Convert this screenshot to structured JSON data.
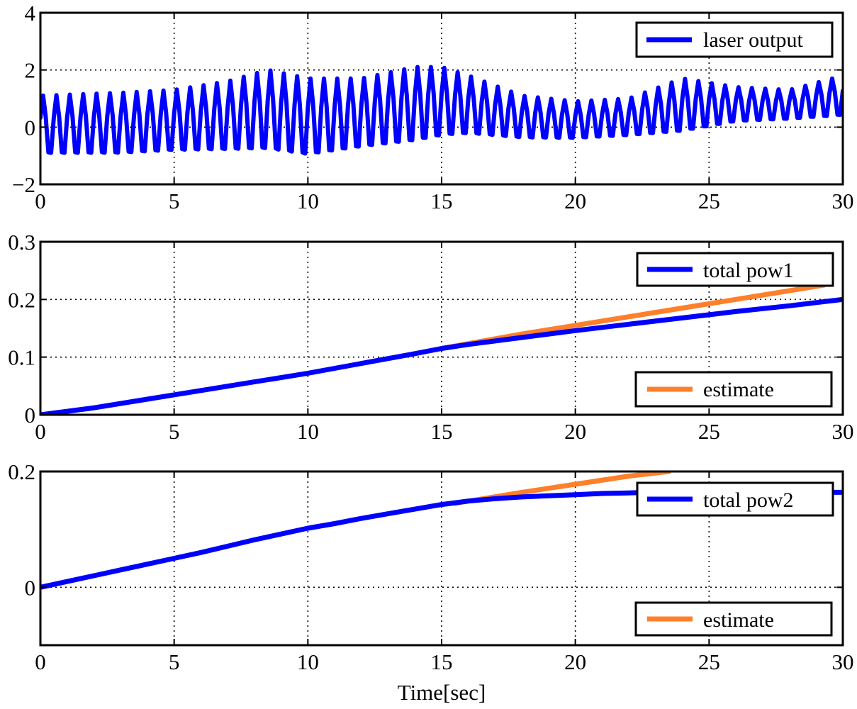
{
  "chart_data": [
    {
      "type": "line",
      "xlim": [
        0,
        30
      ],
      "ylim": [
        -2,
        4
      ],
      "x_ticks": [
        0,
        5,
        10,
        15,
        20,
        25,
        30
      ],
      "x_tick_labels": [
        "0",
        "5",
        "10",
        "15",
        "20",
        "25",
        "30"
      ],
      "y_ticks": [
        -2,
        0,
        2,
        4
      ],
      "y_tick_labels": [
        "−2",
        "0",
        "2",
        "4"
      ],
      "grid": true,
      "series": [
        {
          "name": "laser output",
          "color": "#0000ff",
          "kind": "oscillation",
          "sample_step": 0.1,
          "period": 0.5,
          "envelope_t": [
            0,
            3,
            5,
            7,
            8.5,
            10,
            12,
            14,
            15,
            16,
            18,
            20,
            22,
            24,
            26,
            28,
            30
          ],
          "envelope_max": [
            1.1,
            1.2,
            1.3,
            1.6,
            2.0,
            1.7,
            1.7,
            2.1,
            2.1,
            1.8,
            1.1,
            0.9,
            1.0,
            1.7,
            1.4,
            1.3,
            1.8
          ],
          "envelope_min": [
            -1.1,
            -1.1,
            -1.0,
            -1.0,
            -1.0,
            -1.2,
            -0.9,
            -0.7,
            -0.5,
            -0.4,
            -0.5,
            -0.5,
            -0.4,
            -0.3,
            0.1,
            0.2,
            0.3
          ]
        }
      ],
      "legend": [
        {
          "label": "laser output",
          "color": "#0000ff"
        }
      ]
    },
    {
      "type": "line",
      "xlim": [
        0,
        30
      ],
      "ylim": [
        0,
        0.3
      ],
      "x_ticks": [
        0,
        5,
        10,
        15,
        20,
        25,
        30
      ],
      "x_tick_labels": [
        "0",
        "5",
        "10",
        "15",
        "20",
        "25",
        "30"
      ],
      "y_ticks": [
        0,
        0.1,
        0.2,
        0.3
      ],
      "y_tick_labels": [
        "0",
        "0.1",
        "0.2",
        "0.3"
      ],
      "grid": true,
      "series": [
        {
          "name": "estimate",
          "color": "#ff7f2a",
          "x": [
            15,
            18,
            20,
            22,
            24,
            26,
            28,
            29.3
          ],
          "y": [
            0.115,
            0.14,
            0.155,
            0.17,
            0.185,
            0.2,
            0.215,
            0.225
          ]
        },
        {
          "name": "total pow1",
          "color": "#0000ff",
          "x": [
            0,
            2,
            4,
            6,
            8,
            10,
            12,
            14,
            15,
            16,
            18,
            20,
            22,
            24,
            26,
            28,
            30
          ],
          "y": [
            0,
            0.012,
            0.027,
            0.042,
            0.057,
            0.072,
            0.089,
            0.106,
            0.115,
            0.122,
            0.134,
            0.146,
            0.157,
            0.168,
            0.179,
            0.189,
            0.2
          ]
        }
      ],
      "legend": [
        {
          "label": "total pow1",
          "color": "#0000ff"
        },
        {
          "label": "estimate",
          "color": "#ff7f2a"
        }
      ]
    },
    {
      "type": "line",
      "xlim": [
        0,
        30
      ],
      "ylim": [
        -0.1,
        0.2
      ],
      "x_ticks": [
        0,
        5,
        10,
        15,
        20,
        25,
        30
      ],
      "x_tick_labels": [
        "0",
        "5",
        "10",
        "15",
        "20",
        "25",
        "30"
      ],
      "y_ticks": [
        0,
        0.2
      ],
      "y_tick_labels": [
        "0",
        "0.2"
      ],
      "grid": true,
      "xlabel": "Time[sec]",
      "series": [
        {
          "name": "estimate",
          "color": "#ff7f2a",
          "x": [
            15.5,
            18,
            20,
            22,
            23.5
          ],
          "y": [
            0.145,
            0.164,
            0.178,
            0.192,
            0.2
          ]
        },
        {
          "name": "total pow2",
          "color": "#0000ff",
          "x": [
            0,
            1,
            2,
            3,
            4,
            5,
            6,
            7,
            8,
            9,
            10,
            11,
            12,
            13,
            14,
            15,
            16,
            17,
            18,
            19,
            20,
            21,
            22,
            23,
            24,
            25,
            26,
            27,
            28,
            29,
            30
          ],
          "y": [
            0,
            0.01,
            0.02,
            0.03,
            0.04,
            0.05,
            0.06,
            0.071,
            0.082,
            0.092,
            0.102,
            0.11,
            0.119,
            0.127,
            0.135,
            0.143,
            0.149,
            0.153,
            0.156,
            0.158,
            0.16,
            0.162,
            0.163,
            0.164,
            0.164,
            0.165,
            0.165,
            0.165,
            0.164,
            0.164,
            0.164
          ]
        }
      ],
      "legend": [
        {
          "label": "total pow2",
          "color": "#0000ff"
        },
        {
          "label": "estimate",
          "color": "#ff7f2a"
        }
      ]
    }
  ]
}
